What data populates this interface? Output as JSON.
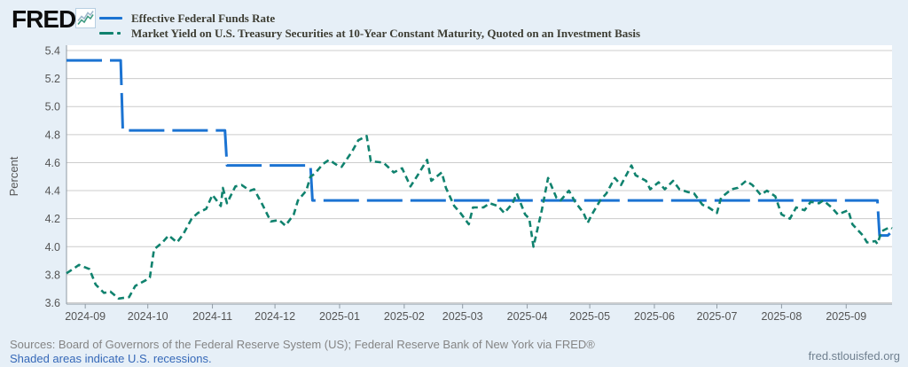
{
  "header": {
    "logo_text": "FRED",
    "logo_reg": "®",
    "logo_icon": "line-chart-icon"
  },
  "footer": {
    "sources": "Sources: Board of Governors of the Federal Reserve System (US); Federal Reserve Bank of New York via FRED®",
    "shaded_note": "Shaded areas indicate U.S. recessions.",
    "site_link": "fred.stlouisfed.org"
  },
  "chart_data": {
    "type": "line",
    "title": "",
    "xlabel": "",
    "ylabel": "Percent",
    "ylim": [
      3.6,
      5.4
    ],
    "y_ticks": [
      3.6,
      3.8,
      4.0,
      4.2,
      4.4,
      4.6,
      4.8,
      5.0,
      5.2,
      5.4
    ],
    "x_domain": [
      "2024-08-23",
      "2025-09-23"
    ],
    "x_ticks": [
      "2024-09",
      "2024-10",
      "2024-11",
      "2024-12",
      "2025-01",
      "2025-02",
      "2025-03",
      "2025-04",
      "2025-05",
      "2025-06",
      "2025-07",
      "2025-08",
      "2025-09"
    ],
    "grid": true,
    "legend_position": "top-left",
    "plot_background": "#ffffff",
    "page_background": "#e6eff7",
    "gridline_color": "#cccccc",
    "axis_color": "#8f9aa3",
    "tick_label_color": "#555555",
    "series": [
      {
        "name": "Effective Federal Funds Rate",
        "color": "#1b73d2",
        "line_style": "dashed-long",
        "dash": "40 9",
        "width": 3,
        "points": [
          [
            "2024-08-23",
            5.33
          ],
          [
            "2024-09-18",
            5.33
          ],
          [
            "2024-09-19",
            4.83
          ],
          [
            "2024-11-07",
            4.83
          ],
          [
            "2024-11-08",
            4.58
          ],
          [
            "2024-12-18",
            4.58
          ],
          [
            "2024-12-19",
            4.33
          ],
          [
            "2025-09-16",
            4.33
          ],
          [
            "2025-09-17",
            4.08
          ],
          [
            "2025-09-21",
            4.08
          ],
          [
            "2025-09-23",
            4.11
          ]
        ]
      },
      {
        "name": "Market Yield on U.S. Treasury Securities at 10-Year Constant Maturity, Quoted on an Investment Basis",
        "color": "#10826e",
        "line_style": "dashed-short",
        "dash": "7 4.5",
        "width": 2.6,
        "points": [
          [
            "2024-08-23",
            3.81
          ],
          [
            "2024-08-27",
            3.85
          ],
          [
            "2024-08-29",
            3.87
          ],
          [
            "2024-09-03",
            3.84
          ],
          [
            "2024-09-06",
            3.73
          ],
          [
            "2024-09-10",
            3.67
          ],
          [
            "2024-09-13",
            3.68
          ],
          [
            "2024-09-17",
            3.63
          ],
          [
            "2024-09-22",
            3.64
          ],
          [
            "2024-09-25",
            3.72
          ],
          [
            "2024-09-30",
            3.76
          ],
          [
            "2024-10-02",
            3.78
          ],
          [
            "2024-10-04",
            3.98
          ],
          [
            "2024-10-08",
            4.03
          ],
          [
            "2024-10-11",
            4.08
          ],
          [
            "2024-10-15",
            4.03
          ],
          [
            "2024-10-18",
            4.09
          ],
          [
            "2024-10-22",
            4.2
          ],
          [
            "2024-10-25",
            4.24
          ],
          [
            "2024-10-29",
            4.27
          ],
          [
            "2024-11-01",
            4.37
          ],
          [
            "2024-11-05",
            4.29
          ],
          [
            "2024-11-06",
            4.42
          ],
          [
            "2024-11-08",
            4.31
          ],
          [
            "2024-11-12",
            4.43
          ],
          [
            "2024-11-15",
            4.44
          ],
          [
            "2024-11-19",
            4.4
          ],
          [
            "2024-11-21",
            4.41
          ],
          [
            "2024-11-25",
            4.3
          ],
          [
            "2024-11-29",
            4.18
          ],
          [
            "2024-12-03",
            4.19
          ],
          [
            "2024-12-06",
            4.15
          ],
          [
            "2024-12-10",
            4.23
          ],
          [
            "2024-12-12",
            4.33
          ],
          [
            "2024-12-16",
            4.4
          ],
          [
            "2024-12-18",
            4.5
          ],
          [
            "2024-12-20",
            4.52
          ],
          [
            "2024-12-24",
            4.59
          ],
          [
            "2024-12-27",
            4.62
          ],
          [
            "2024-12-31",
            4.58
          ],
          [
            "2025-01-02",
            4.57
          ],
          [
            "2025-01-07",
            4.68
          ],
          [
            "2025-01-10",
            4.76
          ],
          [
            "2025-01-14",
            4.79
          ],
          [
            "2025-01-16",
            4.61
          ],
          [
            "2025-01-22",
            4.6
          ],
          [
            "2025-01-27",
            4.53
          ],
          [
            "2025-01-31",
            4.56
          ],
          [
            "2025-02-04",
            4.43
          ],
          [
            "2025-02-07",
            4.5
          ],
          [
            "2025-02-12",
            4.62
          ],
          [
            "2025-02-14",
            4.47
          ],
          [
            "2025-02-19",
            4.53
          ],
          [
            "2025-02-21",
            4.42
          ],
          [
            "2025-02-25",
            4.29
          ],
          [
            "2025-02-28",
            4.24
          ],
          [
            "2025-03-04",
            4.16
          ],
          [
            "2025-03-06",
            4.28
          ],
          [
            "2025-03-11",
            4.28
          ],
          [
            "2025-03-14",
            4.31
          ],
          [
            "2025-03-18",
            4.29
          ],
          [
            "2025-03-21",
            4.24
          ],
          [
            "2025-03-25",
            4.31
          ],
          [
            "2025-03-27",
            4.38
          ],
          [
            "2025-03-31",
            4.23
          ],
          [
            "2025-04-02",
            4.2
          ],
          [
            "2025-04-04",
            4.0
          ],
          [
            "2025-04-08",
            4.26
          ],
          [
            "2025-04-11",
            4.49
          ],
          [
            "2025-04-15",
            4.35
          ],
          [
            "2025-04-17",
            4.33
          ],
          [
            "2025-04-21",
            4.4
          ],
          [
            "2025-04-24",
            4.32
          ],
          [
            "2025-04-28",
            4.24
          ],
          [
            "2025-04-30",
            4.17
          ],
          [
            "2025-05-02",
            4.23
          ],
          [
            "2025-05-06",
            4.33
          ],
          [
            "2025-05-09",
            4.38
          ],
          [
            "2025-05-13",
            4.49
          ],
          [
            "2025-05-16",
            4.44
          ],
          [
            "2025-05-21",
            4.58
          ],
          [
            "2025-05-23",
            4.51
          ],
          [
            "2025-05-28",
            4.47
          ],
          [
            "2025-05-30",
            4.41
          ],
          [
            "2025-06-03",
            4.46
          ],
          [
            "2025-06-06",
            4.41
          ],
          [
            "2025-06-10",
            4.47
          ],
          [
            "2025-06-13",
            4.41
          ],
          [
            "2025-06-17",
            4.39
          ],
          [
            "2025-06-20",
            4.38
          ],
          [
            "2025-06-24",
            4.3
          ],
          [
            "2025-06-27",
            4.28
          ],
          [
            "2025-07-01",
            4.24
          ],
          [
            "2025-07-03",
            4.35
          ],
          [
            "2025-07-08",
            4.41
          ],
          [
            "2025-07-11",
            4.42
          ],
          [
            "2025-07-15",
            4.47
          ],
          [
            "2025-07-18",
            4.44
          ],
          [
            "2025-07-22",
            4.37
          ],
          [
            "2025-07-25",
            4.4
          ],
          [
            "2025-07-29",
            4.36
          ],
          [
            "2025-08-01",
            4.23
          ],
          [
            "2025-08-05",
            4.2
          ],
          [
            "2025-08-08",
            4.28
          ],
          [
            "2025-08-12",
            4.26
          ],
          [
            "2025-08-15",
            4.32
          ],
          [
            "2025-08-19",
            4.31
          ],
          [
            "2025-08-21",
            4.33
          ],
          [
            "2025-08-25",
            4.28
          ],
          [
            "2025-08-28",
            4.23
          ],
          [
            "2025-09-02",
            4.26
          ],
          [
            "2025-09-04",
            4.16
          ],
          [
            "2025-09-09",
            4.08
          ],
          [
            "2025-09-11",
            4.03
          ],
          [
            "2025-09-15",
            4.04
          ],
          [
            "2025-09-16",
            4.02
          ],
          [
            "2025-09-18",
            4.11
          ],
          [
            "2025-09-22",
            4.14
          ],
          [
            "2025-09-23",
            4.13
          ]
        ]
      }
    ]
  }
}
